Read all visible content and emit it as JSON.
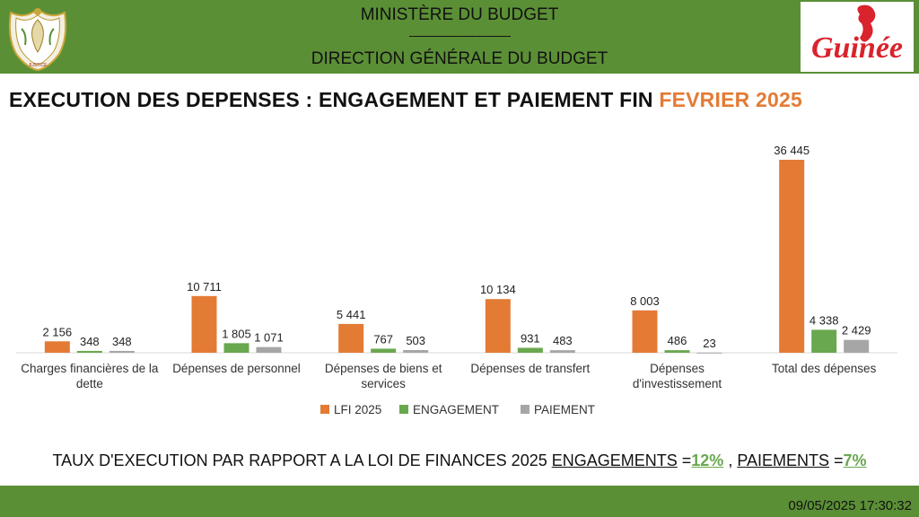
{
  "header": {
    "ministry": "MINISTÈRE DU BUDGET",
    "separator": "----------------------------------",
    "direction": "DIRECTION GÉNÉRALE DU BUDGET",
    "crest_motto": "JUSTICE",
    "logo_text": "Guinée"
  },
  "title": {
    "main": "EXECUTION DES DEPENSES : ENGAGEMENT ET PAIEMENT FIN ",
    "highlight": "FEVRIER 2025"
  },
  "colors": {
    "header_green": "#5b8f36",
    "lfi": "#e37b35",
    "engagement": "#6aa84f",
    "paiement": "#a6a6a6",
    "logo_red": "#d9232d"
  },
  "chart_data": {
    "type": "bar",
    "categories": [
      [
        "Charges financières de la",
        "dette"
      ],
      [
        "Dépenses de personnel"
      ],
      [
        "Dépenses de biens et",
        "services"
      ],
      [
        "Dépenses de transfert"
      ],
      [
        "Dépenses",
        "d'investissement"
      ],
      [
        "Total des dépenses"
      ]
    ],
    "series": [
      {
        "name": "LFI 2025",
        "color": "#e37b35",
        "values": [
          2156,
          10711,
          5441,
          10134,
          8003,
          36445
        ],
        "labels": [
          "2 156",
          "10 711",
          "5 441",
          "10 134",
          "8 003",
          "36 445"
        ]
      },
      {
        "name": "ENGAGEMENT",
        "color": "#6aa84f",
        "values": [
          348,
          1805,
          767,
          931,
          486,
          4338
        ],
        "labels": [
          "348",
          "1 805",
          "767",
          "931",
          "486",
          "4 338"
        ]
      },
      {
        "name": "PAIEMENT",
        "color": "#a6a6a6",
        "values": [
          348,
          1071,
          503,
          483,
          23,
          2429
        ],
        "labels": [
          "348",
          "1 071",
          "503",
          "483",
          "23",
          "2 429"
        ]
      }
    ],
    "ylim": [
      0,
      36445
    ],
    "legend": "bottom",
    "grid": false
  },
  "summary": {
    "text": "TAUX D'EXECUTION PAR RAPPORT A LA LOI DE FINANCES 2025 ",
    "engagements_label": "ENGAGEMENTS",
    "eq1": " =",
    "engagements_rate": "12%",
    "comma": " , ",
    "paiements_label": "PAIEMENTS",
    "eq2": " =",
    "paiements_rate": "7%"
  },
  "footer": {
    "timestamp": "09/05/2025 17:30:32"
  }
}
